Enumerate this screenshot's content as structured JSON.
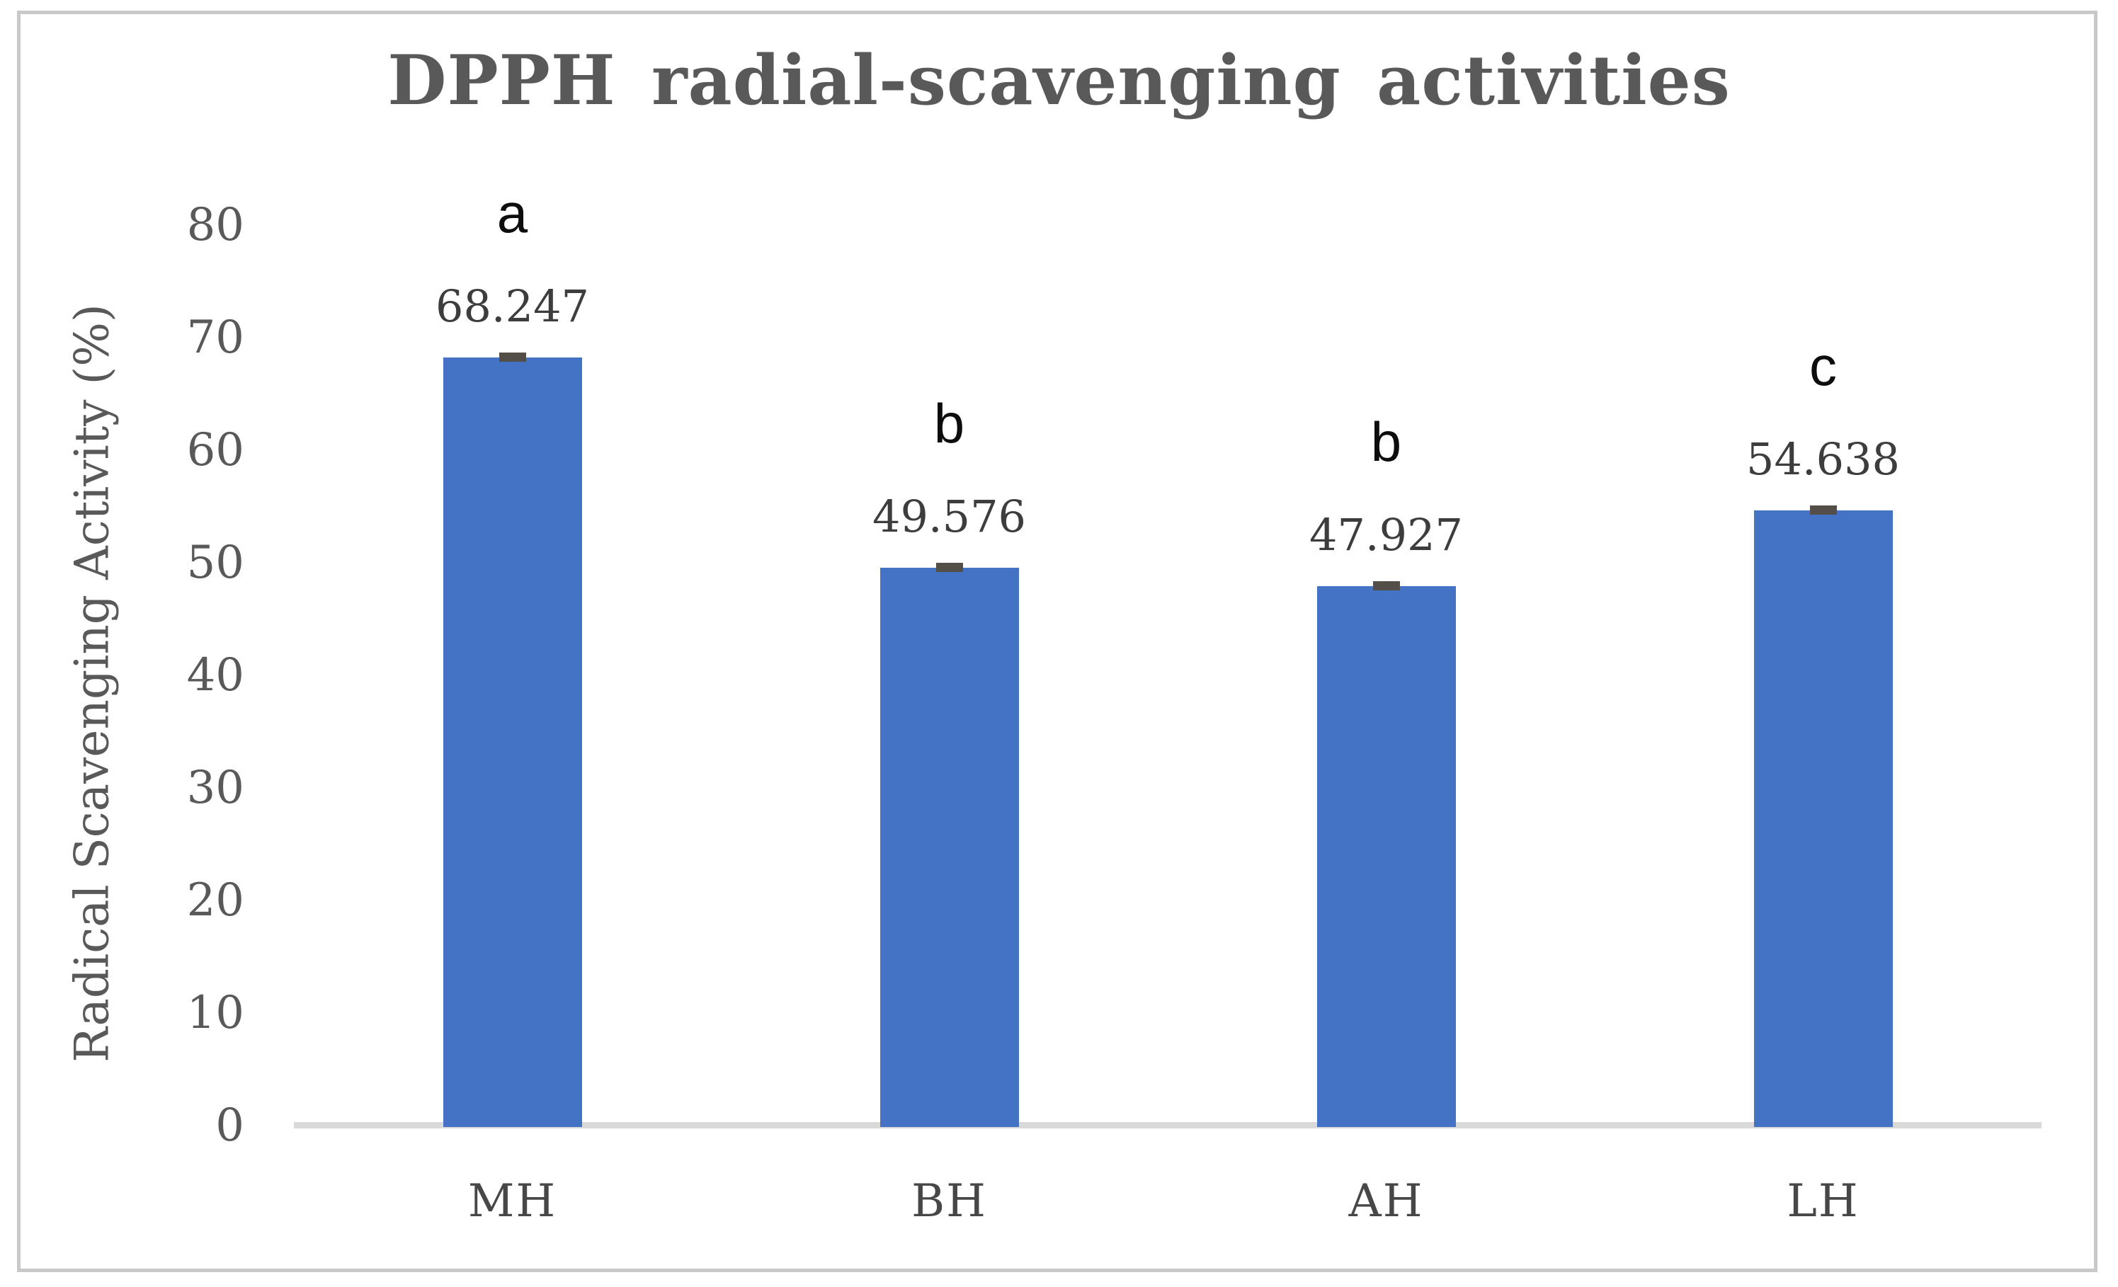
{
  "figure": {
    "title": "DPPH radial-scavenging activities",
    "y_axis_label": "Radical Scavenging Activity (%)"
  },
  "chart_data": {
    "type": "bar",
    "title": "DPPH radial-scavenging activities",
    "ylabel": "Radical Scavenging Activity (%)",
    "xlabel": "",
    "categories": [
      "MH",
      "BH",
      "AH",
      "LH"
    ],
    "values": [
      68.247,
      49.576,
      47.927,
      54.638
    ],
    "value_labels": [
      "68.247",
      "49.576",
      "47.927",
      "54.638"
    ],
    "significance_letters": [
      "a",
      "b",
      "b",
      "c"
    ],
    "error_bars": "small caps at bar tops",
    "yticks": [
      0,
      10,
      20,
      30,
      40,
      50,
      60,
      70,
      80
    ],
    "ylim": [
      0,
      80
    ],
    "grid": false,
    "legend": "none",
    "colors": {
      "bar": "#4472C4",
      "error_cap": "#534E47",
      "axis_line": "#D9D9D9",
      "title_text": "#595959",
      "tick_text": "#595959",
      "value_text": "#3D3D3D",
      "letter_text": "#0D0D0D",
      "category_text": "#474747",
      "figure_border": "#C9C9C9"
    }
  }
}
